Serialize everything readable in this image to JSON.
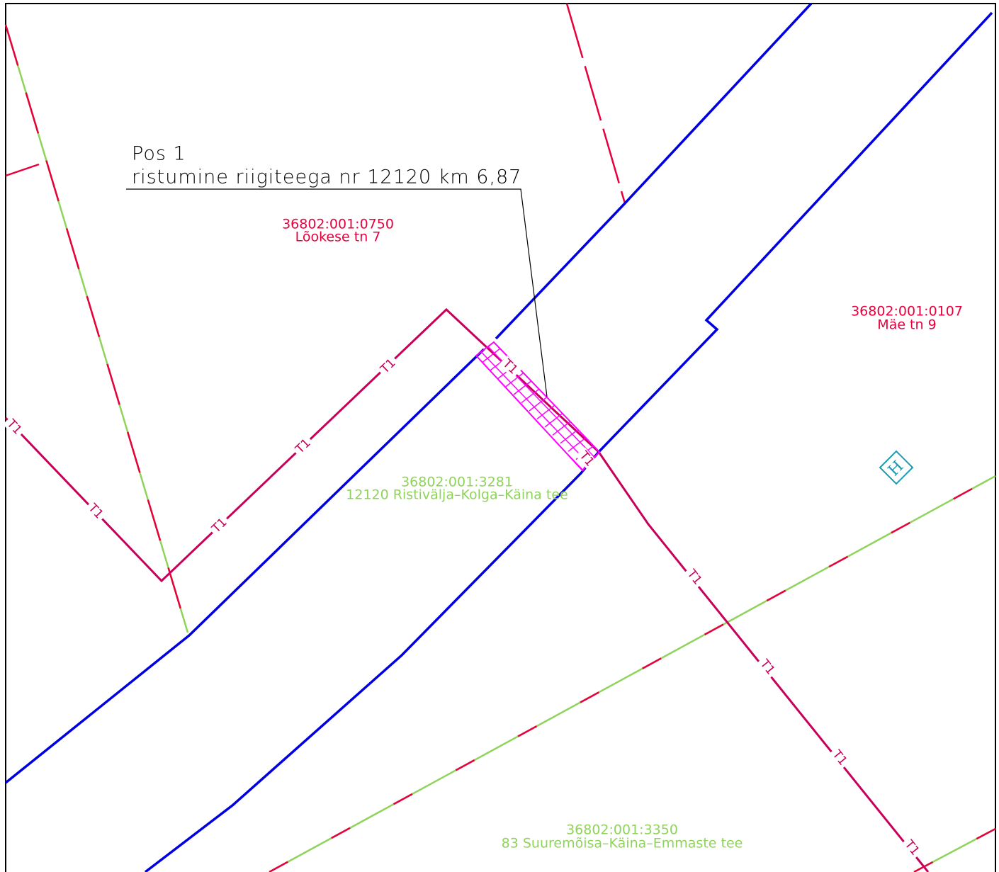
{
  "annotation": {
    "line1": "Pos 1",
    "line2": "ristumine riigiteega nr 12120 km 6,87"
  },
  "parcels": [
    {
      "id": "36802:001:0750",
      "name": "Lõokese tn 7"
    },
    {
      "id": "36802:001:0107",
      "name": "Mäe tn 9"
    },
    {
      "id": "36802:001:3281",
      "name": "12120 Ristivälja–Kolga–Käina tee"
    },
    {
      "id": "36802:001:3350",
      "name": "83 Suuremõisa–Käina–Emmaste tee"
    }
  ],
  "cable_label": "T1",
  "symbol": "H"
}
